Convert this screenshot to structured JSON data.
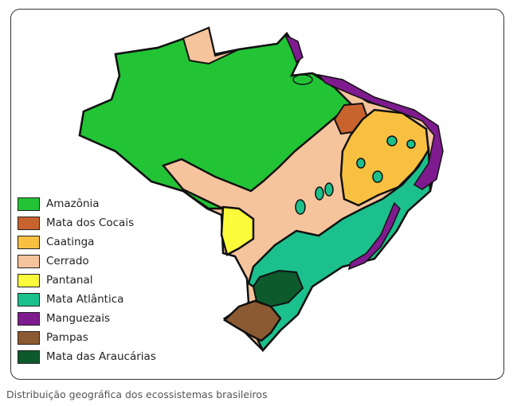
{
  "caption": "Distribuição geográfica dos ecossistemas brasileiros",
  "legend": [
    {
      "label": "Amazônia",
      "color": "#22c436"
    },
    {
      "label": "Mata dos Cocais",
      "color": "#c8632e"
    },
    {
      "label": "Caatinga",
      "color": "#f7c040"
    },
    {
      "label": "Cerrado",
      "color": "#f6c49c"
    },
    {
      "label": "Pantanal",
      "color": "#fbfb3c"
    },
    {
      "label": "Mata Atlântica",
      "color": "#1cc08c"
    },
    {
      "label": "Manguezais",
      "color": "#7e1b8e"
    },
    {
      "label": "Pampas",
      "color": "#8b5a32"
    },
    {
      "label": "Mata das Araucárias",
      "color": "#0d5a2d"
    }
  ]
}
